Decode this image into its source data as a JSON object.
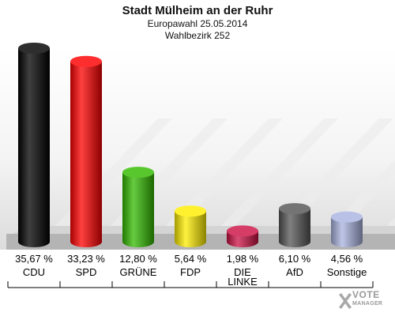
{
  "header": {
    "title": "Stadt Mülheim an der Ruhr",
    "subtitle_1": "Europawahl 25.05.2014",
    "subtitle_2": "Wahlbezirk 252"
  },
  "chart_data": {
    "type": "bar",
    "title": "Stadt Mülheim an der Ruhr",
    "subtitle": "Europawahl 25.05.2014 Wahlbezirk 252",
    "categories": [
      "CDU",
      "SPD",
      "GRÜNE",
      "FDP",
      "DIE LINKE",
      "AfD",
      "Sonstige"
    ],
    "category_lines": [
      [
        "CDU"
      ],
      [
        "SPD"
      ],
      [
        "GRÜNE"
      ],
      [
        "FDP"
      ],
      [
        "DIE",
        "LINKE"
      ],
      [
        "AfD"
      ],
      [
        "Sonstige"
      ]
    ],
    "values": [
      35.67,
      33.23,
      12.8,
      5.64,
      1.98,
      6.1,
      4.56
    ],
    "value_labels": [
      "35,67 %",
      "33,23 %",
      "12,80 %",
      "5,64 %",
      "1,98 %",
      "6,10 %",
      "4,56 %"
    ],
    "colors": [
      "#000000",
      "#ff0000",
      "#33bb00",
      "#ffee00",
      "#cc1144",
      "#555555",
      "#aab4e0"
    ],
    "ylim": [
      0,
      35.67
    ],
    "grid": false,
    "legend": "none"
  },
  "logo": {
    "line1": "VOTE",
    "line2": "MANAGER",
    "icon": "ballot-cross-icon"
  }
}
